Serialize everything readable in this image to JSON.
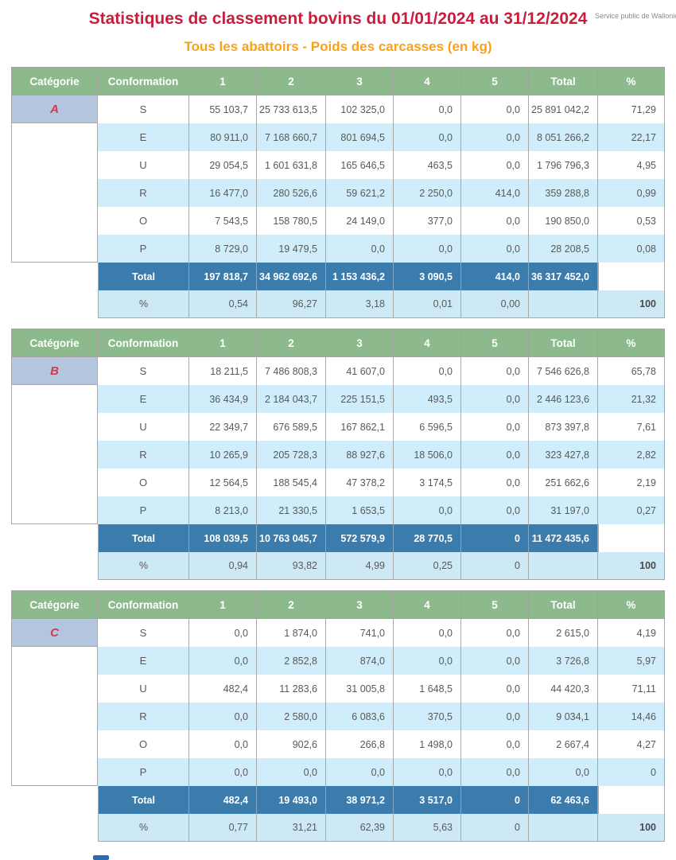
{
  "page": {
    "title": "Statistiques de classement bovins  du 01/01/2024 au 31/12/2024",
    "subtitle": "Tous les abattoirs - Poids des carcasses (en kg)",
    "watermark": "Service public de Wallonie"
  },
  "columns": [
    "Catégorie",
    "Conformation",
    "1",
    "2",
    "3",
    "4",
    "5",
    "Total",
    "%"
  ],
  "colors": {
    "header_green": "#8CBA8C",
    "category_cell_blue": "#B4C6DF",
    "stripe_blue": "#CFEDFB",
    "total_row_blue": "#3C7CAD",
    "title_red": "#C81E3C",
    "subtitle_orange": "#F9A11B",
    "category_letter_red": "#CE3B4C"
  },
  "tables": [
    {
      "category": "A",
      "rows": [
        {
          "conformation": "S",
          "c1": "55 103,7",
          "c2": "25 733 613,5",
          "c3": "102 325,0",
          "c4": "0,0",
          "c5": "0,0",
          "total": "25 891 042,2",
          "pct": "71,29"
        },
        {
          "conformation": "E",
          "c1": "80 911,0",
          "c2": "7 168 660,7",
          "c3": "801 694,5",
          "c4": "0,0",
          "c5": "0,0",
          "total": "8 051 266,2",
          "pct": "22,17"
        },
        {
          "conformation": "U",
          "c1": "29 054,5",
          "c2": "1 601 631,8",
          "c3": "165 646,5",
          "c4": "463,5",
          "c5": "0,0",
          "total": "1 796 796,3",
          "pct": "4,95"
        },
        {
          "conformation": "R",
          "c1": "16 477,0",
          "c2": "280 526,6",
          "c3": "59 621,2",
          "c4": "2 250,0",
          "c5": "414,0",
          "total": "359 288,8",
          "pct": "0,99"
        },
        {
          "conformation": "O",
          "c1": "7 543,5",
          "c2": "158 780,5",
          "c3": "24 149,0",
          "c4": "377,0",
          "c5": "0,0",
          "total": "190 850,0",
          "pct": "0,53"
        },
        {
          "conformation": "P",
          "c1": "8 729,0",
          "c2": "19 479,5",
          "c3": "0,0",
          "c4": "0,0",
          "c5": "0,0",
          "total": "28 208,5",
          "pct": "0,08"
        }
      ],
      "total_row": {
        "label": "Total",
        "c1": "197 818,7",
        "c2": "34 962 692,6",
        "c3": "1 153 436,2",
        "c4": "3 090,5",
        "c5": "414,0",
        "total": "36 317 452,0"
      },
      "pct_row": {
        "label": "%",
        "c1": "0,54",
        "c2": "96,27",
        "c3": "3,18",
        "c4": "0,01",
        "c5": "0,00",
        "total": "",
        "pct": "100"
      }
    },
    {
      "category": "B",
      "rows": [
        {
          "conformation": "S",
          "c1": "18 211,5",
          "c2": "7 486 808,3",
          "c3": "41 607,0",
          "c4": "0,0",
          "c5": "0,0",
          "total": "7 546 626,8",
          "pct": "65,78"
        },
        {
          "conformation": "E",
          "c1": "36 434,9",
          "c2": "2 184 043,7",
          "c3": "225 151,5",
          "c4": "493,5",
          "c5": "0,0",
          "total": "2 446 123,6",
          "pct": "21,32"
        },
        {
          "conformation": "U",
          "c1": "22 349,7",
          "c2": "676 589,5",
          "c3": "167 862,1",
          "c4": "6 596,5",
          "c5": "0,0",
          "total": "873 397,8",
          "pct": "7,61"
        },
        {
          "conformation": "R",
          "c1": "10 265,9",
          "c2": "205 728,3",
          "c3": "88 927,6",
          "c4": "18 506,0",
          "c5": "0,0",
          "total": "323 427,8",
          "pct": "2,82"
        },
        {
          "conformation": "O",
          "c1": "12 564,5",
          "c2": "188 545,4",
          "c3": "47 378,2",
          "c4": "3 174,5",
          "c5": "0,0",
          "total": "251 662,6",
          "pct": "2,19"
        },
        {
          "conformation": "P",
          "c1": "8 213,0",
          "c2": "21 330,5",
          "c3": "1 653,5",
          "c4": "0,0",
          "c5": "0,0",
          "total": "31 197,0",
          "pct": "0,27"
        }
      ],
      "total_row": {
        "label": "Total",
        "c1": "108 039,5",
        "c2": "10 763 045,7",
        "c3": "572 579,9",
        "c4": "28 770,5",
        "c5": "0",
        "total": "11 472 435,6"
      },
      "pct_row": {
        "label": "%",
        "c1": "0,94",
        "c2": "93,82",
        "c3": "4,99",
        "c4": "0,25",
        "c5": "0",
        "total": "",
        "pct": "100"
      }
    },
    {
      "category": "C",
      "rows": [
        {
          "conformation": "S",
          "c1": "0,0",
          "c2": "1 874,0",
          "c3": "741,0",
          "c4": "0,0",
          "c5": "0,0",
          "total": "2 615,0",
          "pct": "4,19"
        },
        {
          "conformation": "E",
          "c1": "0,0",
          "c2": "2 852,8",
          "c3": "874,0",
          "c4": "0,0",
          "c5": "0,0",
          "total": "3 726,8",
          "pct": "5,97"
        },
        {
          "conformation": "U",
          "c1": "482,4",
          "c2": "11 283,6",
          "c3": "31 005,8",
          "c4": "1 648,5",
          "c5": "0,0",
          "total": "44 420,3",
          "pct": "71,11"
        },
        {
          "conformation": "R",
          "c1": "0,0",
          "c2": "2 580,0",
          "c3": "6 083,6",
          "c4": "370,5",
          "c5": "0,0",
          "total": "9 034,1",
          "pct": "14,46"
        },
        {
          "conformation": "O",
          "c1": "0,0",
          "c2": "902,6",
          "c3": "266,8",
          "c4": "1 498,0",
          "c5": "0,0",
          "total": "2 667,4",
          "pct": "4,27"
        },
        {
          "conformation": "P",
          "c1": "0,0",
          "c2": "0,0",
          "c3": "0,0",
          "c4": "0,0",
          "c5": "0,0",
          "total": "0,0",
          "pct": "0"
        }
      ],
      "total_row": {
        "label": "Total",
        "c1": "482,4",
        "c2": "19 493,0",
        "c3": "38 971,2",
        "c4": "3 517,0",
        "c5": "0",
        "total": "62 463,6"
      },
      "pct_row": {
        "label": "%",
        "c1": "0,77",
        "c2": "31,21",
        "c3": "62,39",
        "c4": "5,63",
        "c5": "0",
        "total": "",
        "pct": "100"
      }
    }
  ]
}
